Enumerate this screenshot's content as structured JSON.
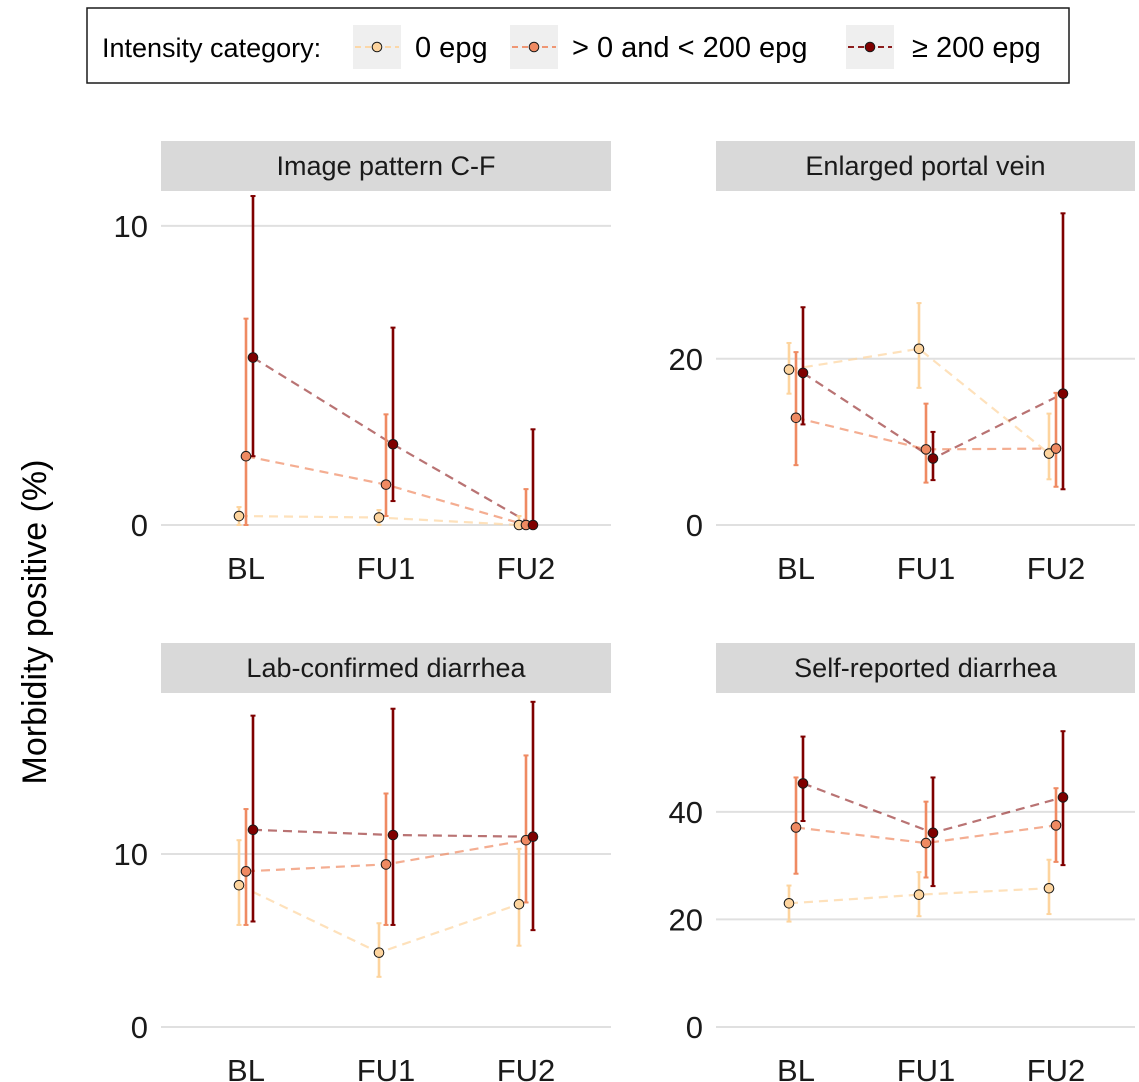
{
  "ylabel": "Morbidity positive (%)",
  "legend": {
    "title": "Intensity category:",
    "placement": "top",
    "entries": [
      {
        "label": "0 epg",
        "color": "#FDD49E"
      },
      {
        "label": "> 0 and < 200 epg",
        "color": "#EF8A62"
      },
      {
        "label": "≥ 200 epg",
        "color": "#7F0000"
      }
    ]
  },
  "colors": {
    "panel_strip": "#D9D9D9",
    "grid": "#E0E0E0",
    "c0": "#FDD49E",
    "c1": "#EF8A62",
    "c2": "#7F0000"
  },
  "chart_data": [
    {
      "type": "line",
      "title": "Image pattern C-F",
      "categories": [
        "BL",
        "FU1",
        "FU2"
      ],
      "ylim": [
        0,
        10.7
      ],
      "yticks": [
        0,
        10
      ],
      "grid": true,
      "series": [
        {
          "name": "0 epg",
          "values": [
            0.3,
            0.25,
            0
          ],
          "lower": [
            0.0,
            0.0,
            0
          ],
          "upper": [
            0.6,
            0.5,
            0.3
          ]
        },
        {
          "name": "> 0 and < 200 epg",
          "values": [
            2.3,
            1.35,
            0
          ],
          "lower": [
            0.0,
            0.3,
            0
          ],
          "upper": [
            6.9,
            3.7,
            1.2
          ]
        },
        {
          "name": "≥ 200 epg",
          "values": [
            5.6,
            2.7,
            0
          ],
          "lower": [
            2.3,
            0.8,
            0
          ],
          "upper": [
            11.0,
            6.6,
            3.2
          ]
        }
      ]
    },
    {
      "type": "line",
      "title": "Enlarged portal vein",
      "categories": [
        "BL",
        "FU1",
        "FU2"
      ],
      "ylim": [
        0,
        38.5
      ],
      "yticks": [
        0,
        20
      ],
      "grid": true,
      "series": [
        {
          "name": "0 epg",
          "values": [
            18.7,
            21.2,
            8.6
          ],
          "lower": [
            15.8,
            16.5,
            5.5
          ],
          "upper": [
            21.9,
            26.7,
            13.4
          ]
        },
        {
          "name": "> 0 and < 200 epg",
          "values": [
            12.9,
            9.1,
            9.2
          ],
          "lower": [
            7.2,
            5.1,
            4.6
          ],
          "upper": [
            20.8,
            14.6,
            15.9
          ]
        },
        {
          "name": "≥ 200 epg",
          "values": [
            18.3,
            8.0,
            15.8
          ],
          "lower": [
            12.1,
            5.4,
            4.3
          ],
          "upper": [
            26.2,
            11.2,
            37.5
          ]
        }
      ]
    },
    {
      "type": "line",
      "title": "Lab-confirmed diarrhea",
      "categories": [
        "BL",
        "FU1",
        "FU2"
      ],
      "ylim": [
        0,
        18.5
      ],
      "yticks": [
        0,
        10
      ],
      "grid": true,
      "series": [
        {
          "name": "0 epg",
          "values": [
            8.2,
            4.3,
            7.1
          ],
          "lower": [
            5.9,
            2.9,
            4.7
          ],
          "upper": [
            10.8,
            6.0,
            10.3
          ]
        },
        {
          "name": "> 0 and < 200 epg",
          "values": [
            9.0,
            9.4,
            10.8
          ],
          "lower": [
            5.9,
            5.9,
            7.2
          ],
          "upper": [
            12.6,
            13.5,
            15.7
          ]
        },
        {
          "name": "≥ 200 epg",
          "values": [
            11.4,
            11.1,
            11.0
          ],
          "lower": [
            6.1,
            5.9,
            5.6
          ],
          "upper": [
            18.0,
            18.4,
            18.8
          ]
        }
      ]
    },
    {
      "type": "line",
      "title": "Self-reported diarrhea",
      "categories": [
        "BL",
        "FU1",
        "FU2"
      ],
      "ylim": [
        0,
        59.5
      ],
      "yticks": [
        0,
        20,
        40
      ],
      "grid": true,
      "series": [
        {
          "name": "0 epg",
          "values": [
            23.0,
            24.6,
            25.8
          ],
          "lower": [
            19.6,
            20.6,
            21.0
          ],
          "upper": [
            26.3,
            28.8,
            31.1
          ]
        },
        {
          "name": "> 0 and < 200 epg",
          "values": [
            37.1,
            34.2,
            37.5
          ],
          "lower": [
            28.5,
            27.8,
            30.7
          ],
          "upper": [
            46.4,
            41.9,
            44.4
          ]
        },
        {
          "name": "≥ 200 epg",
          "values": [
            45.3,
            36.1,
            42.7
          ],
          "lower": [
            38.3,
            26.2,
            30.1
          ],
          "upper": [
            54.0,
            46.4,
            55.0
          ]
        }
      ]
    }
  ]
}
